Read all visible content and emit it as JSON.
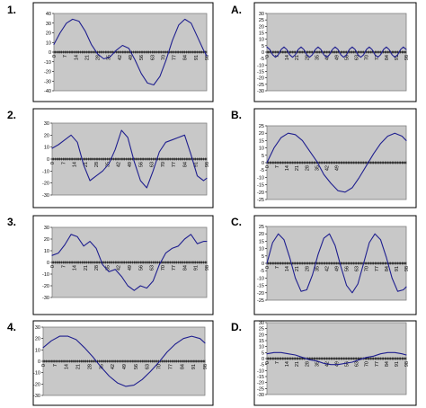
{
  "panels": [
    {
      "label": "1."
    },
    {
      "label": "A."
    },
    {
      "label": "2."
    },
    {
      "label": "B."
    },
    {
      "label": "3."
    },
    {
      "label": "C."
    },
    {
      "label": "4."
    },
    {
      "label": "D."
    }
  ],
  "chart_data": [
    {
      "type": "line",
      "panel": "1.",
      "ylim": [
        -40,
        40
      ],
      "yticks": [
        40,
        30,
        20,
        10,
        0,
        -10,
        -20,
        -30,
        -40
      ],
      "xticks": [
        "0",
        "7",
        "14",
        "21",
        "28",
        "35",
        "42",
        "49",
        "56",
        "63",
        "70",
        "77",
        "84",
        "91",
        "98"
      ],
      "xmax": 98,
      "x": [
        0,
        4,
        8,
        12,
        16,
        20,
        24,
        28,
        32,
        36,
        40,
        44,
        48,
        52,
        56,
        60,
        64,
        68,
        72,
        76,
        80,
        84,
        88,
        92,
        96,
        98
      ],
      "y": [
        8,
        20,
        30,
        34,
        32,
        22,
        8,
        -2,
        -7,
        -5,
        2,
        7,
        4,
        -8,
        -22,
        -32,
        -34,
        -25,
        -8,
        12,
        28,
        34,
        30,
        16,
        2,
        -4
      ],
      "series_color": "#1f1f8f"
    },
    {
      "type": "line",
      "panel": "A.",
      "ylim": [
        -30,
        30
      ],
      "yticks": [
        30,
        25,
        20,
        15,
        10,
        5,
        0,
        -5,
        -10,
        -15,
        -20,
        -25,
        -30
      ],
      "xticks": [
        "0",
        "7",
        "14",
        "21",
        "28",
        "35",
        "42",
        "49",
        "56",
        "63",
        "70",
        "77",
        "84",
        "91",
        "98"
      ],
      "xmax": 98,
      "x": [
        0,
        2,
        4,
        6,
        8,
        10,
        12,
        14,
        16,
        18,
        20,
        22,
        24,
        26,
        28,
        30,
        32,
        34,
        36,
        38,
        40,
        42,
        44,
        46,
        48,
        50,
        52,
        54,
        56,
        58,
        60,
        62,
        64,
        66,
        68,
        70,
        72,
        74,
        76,
        78,
        80,
        82,
        84,
        86,
        88,
        90,
        92,
        94,
        96,
        98
      ],
      "y": [
        4,
        2,
        -2,
        -4,
        -2,
        2,
        4,
        2,
        -2,
        -4,
        -2,
        2,
        4,
        2,
        -2,
        -4,
        -2,
        2,
        4,
        2,
        -2,
        -4,
        -2,
        2,
        4,
        2,
        -2,
        -4,
        -2,
        2,
        4,
        2,
        -2,
        -4,
        -2,
        2,
        4,
        2,
        -2,
        -4,
        -2,
        2,
        4,
        2,
        -2,
        -4,
        -2,
        2,
        4,
        2
      ],
      "series_color": "#1f1f8f"
    },
    {
      "type": "line",
      "panel": "2.",
      "ylim": [
        -30,
        30
      ],
      "yticks": [
        30,
        20,
        10,
        0,
        -10,
        -20,
        -30
      ],
      "xticks": [
        "0",
        "7",
        "14",
        "21",
        "28",
        "35",
        "42",
        "49",
        "56",
        "63",
        "70",
        "77",
        "84",
        "91",
        "98"
      ],
      "xmax": 98,
      "x": [
        0,
        4,
        8,
        12,
        16,
        20,
        24,
        28,
        32,
        36,
        40,
        44,
        48,
        52,
        56,
        60,
        64,
        68,
        72,
        76,
        80,
        84,
        88,
        92,
        96,
        98
      ],
      "y": [
        9,
        12,
        16,
        20,
        14,
        -5,
        -18,
        -14,
        -10,
        -4,
        8,
        24,
        18,
        -2,
        -18,
        -24,
        -10,
        6,
        14,
        16,
        18,
        20,
        4,
        -14,
        -18,
        -16
      ],
      "series_color": "#1f1f8f"
    },
    {
      "type": "line",
      "panel": "B.",
      "ylim": [
        -25,
        25
      ],
      "yticks": [
        25,
        20,
        15,
        10,
        5,
        0,
        -5,
        -10,
        -15,
        -20,
        -25
      ],
      "xticks": [
        "0",
        "7",
        "14",
        "21",
        "28",
        "35",
        "42",
        "49"
      ],
      "xmax": 98,
      "x": [
        0,
        5,
        10,
        15,
        20,
        25,
        30,
        35,
        40,
        45,
        50,
        55,
        60,
        65,
        70,
        75,
        80,
        85,
        90,
        95,
        98
      ],
      "y": [
        0,
        10,
        17,
        20,
        19,
        15,
        8,
        1,
        -8,
        -14,
        -19,
        -20,
        -17,
        -10,
        -2,
        6,
        13,
        18,
        20,
        18,
        15
      ],
      "series_color": "#1f1f8f"
    },
    {
      "type": "line",
      "panel": "3.",
      "ylim": [
        -30,
        30
      ],
      "yticks": [
        30,
        20,
        10,
        0,
        -10,
        -20,
        -30
      ],
      "xticks": [
        "0",
        "7",
        "14",
        "21",
        "28",
        "35",
        "42",
        "49",
        "56",
        "63",
        "70",
        "77",
        "84",
        "91",
        "98"
      ],
      "xmax": 98,
      "x": [
        0,
        4,
        8,
        12,
        16,
        20,
        24,
        28,
        32,
        36,
        40,
        44,
        48,
        52,
        56,
        60,
        64,
        68,
        72,
        76,
        80,
        84,
        88,
        92,
        96,
        98
      ],
      "y": [
        6,
        8,
        15,
        24,
        22,
        14,
        18,
        12,
        -2,
        -8,
        -6,
        -12,
        -20,
        -24,
        -20,
        -22,
        -16,
        -2,
        8,
        12,
        14,
        20,
        24,
        16,
        18,
        18
      ],
      "series_color": "#1f1f8f"
    },
    {
      "type": "line",
      "panel": "C.",
      "ylim": [
        -25,
        25
      ],
      "yticks": [
        25,
        20,
        15,
        10,
        5,
        0,
        -5,
        -10,
        -15,
        -20,
        -25
      ],
      "xticks": [
        "0",
        "7",
        "14",
        "21",
        "28",
        "35",
        "42",
        "49",
        "56",
        "63",
        "70",
        "77",
        "84",
        "91",
        "98"
      ],
      "xmax": 98,
      "x": [
        0,
        4,
        8,
        12,
        16,
        20,
        24,
        28,
        32,
        36,
        40,
        44,
        48,
        52,
        56,
        60,
        64,
        68,
        72,
        76,
        80,
        84,
        88,
        92,
        96,
        98
      ],
      "y": [
        0,
        14,
        20,
        16,
        4,
        -10,
        -19,
        -18,
        -8,
        6,
        17,
        20,
        12,
        -2,
        -15,
        -20,
        -14,
        0,
        14,
        20,
        16,
        4,
        -10,
        -19,
        -18,
        -16
      ],
      "series_color": "#1f1f8f"
    },
    {
      "type": "line",
      "panel": "4.",
      "ylim": [
        -30,
        30
      ],
      "yticks": [
        30,
        20,
        10,
        0,
        -10,
        -20,
        -30
      ],
      "xticks": [
        "0",
        "7",
        "14",
        "21",
        "28",
        "35",
        "42",
        "49",
        "56",
        "63",
        "70",
        "77",
        "84",
        "91",
        "98"
      ],
      "xmax": 98,
      "x": [
        0,
        5,
        10,
        15,
        20,
        25,
        30,
        35,
        40,
        45,
        50,
        55,
        60,
        65,
        70,
        75,
        80,
        85,
        90,
        95,
        98
      ],
      "y": [
        12,
        18,
        22,
        22,
        19,
        12,
        4,
        -5,
        -13,
        -19,
        -22,
        -21,
        -16,
        -9,
        -1,
        8,
        15,
        20,
        22,
        20,
        16
      ],
      "series_color": "#1f1f8f"
    },
    {
      "type": "line",
      "panel": "D.",
      "ylim": [
        -30,
        30
      ],
      "yticks": [
        30,
        25,
        20,
        15,
        10,
        5,
        0,
        -5,
        -10,
        -15,
        -20,
        -25,
        -30
      ],
      "xticks": [
        "0",
        "7",
        "14",
        "21",
        "28",
        "35",
        "42",
        "49",
        "56",
        "63",
        "70",
        "77",
        "84",
        "91",
        "98"
      ],
      "xmax": 98,
      "x": [
        0,
        5,
        10,
        15,
        20,
        25,
        30,
        35,
        40,
        45,
        50,
        55,
        60,
        65,
        70,
        75,
        80,
        85,
        90,
        95,
        98
      ],
      "y": [
        4,
        5,
        5,
        4,
        3,
        1,
        -1,
        -2,
        -4,
        -5,
        -5,
        -4,
        -3,
        -1,
        1,
        2,
        4,
        5,
        5,
        4,
        3
      ],
      "series_color": "#1f1f8f"
    }
  ]
}
